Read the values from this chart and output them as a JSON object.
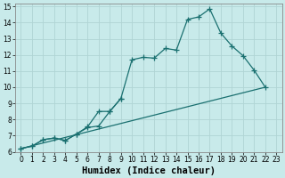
{
  "xlabel": "Humidex (Indice chaleur)",
  "xlim": [
    -0.5,
    23.5
  ],
  "ylim": [
    6,
    15.2
  ],
  "xticks": [
    0,
    1,
    2,
    3,
    4,
    5,
    6,
    7,
    8,
    9,
    10,
    11,
    12,
    13,
    14,
    15,
    16,
    17,
    18,
    19,
    20,
    21,
    22,
    23
  ],
  "yticks": [
    6,
    7,
    8,
    9,
    10,
    11,
    12,
    13,
    14,
    15
  ],
  "bg_color": "#c8eaea",
  "grid_color": "#b0d4d4",
  "line_color": "#1a7070",
  "line1_x": [
    0,
    1,
    2,
    3,
    4,
    5,
    6,
    7,
    8,
    9,
    10,
    11,
    12,
    13,
    14,
    15,
    16,
    17,
    18,
    19,
    20,
    21,
    22
  ],
  "line1_y": [
    6.2,
    6.35,
    6.75,
    6.85,
    6.7,
    7.1,
    7.5,
    7.6,
    8.5,
    9.3,
    11.7,
    11.85,
    11.8,
    12.4,
    12.3,
    14.2,
    14.35,
    14.85,
    13.35,
    12.55,
    11.95,
    11.05,
    10.0
  ],
  "line2_x": [
    0,
    1,
    2,
    3,
    4,
    5,
    6,
    7,
    8,
    9
  ],
  "line2_y": [
    6.2,
    6.35,
    6.75,
    6.85,
    6.7,
    7.1,
    7.55,
    8.5,
    8.5,
    9.3
  ],
  "line3_x": [
    0,
    22
  ],
  "line3_y": [
    6.2,
    10.0
  ],
  "linewidth": 0.9,
  "tick_fontsize": 5.5,
  "xlabel_fontsize": 7.5
}
